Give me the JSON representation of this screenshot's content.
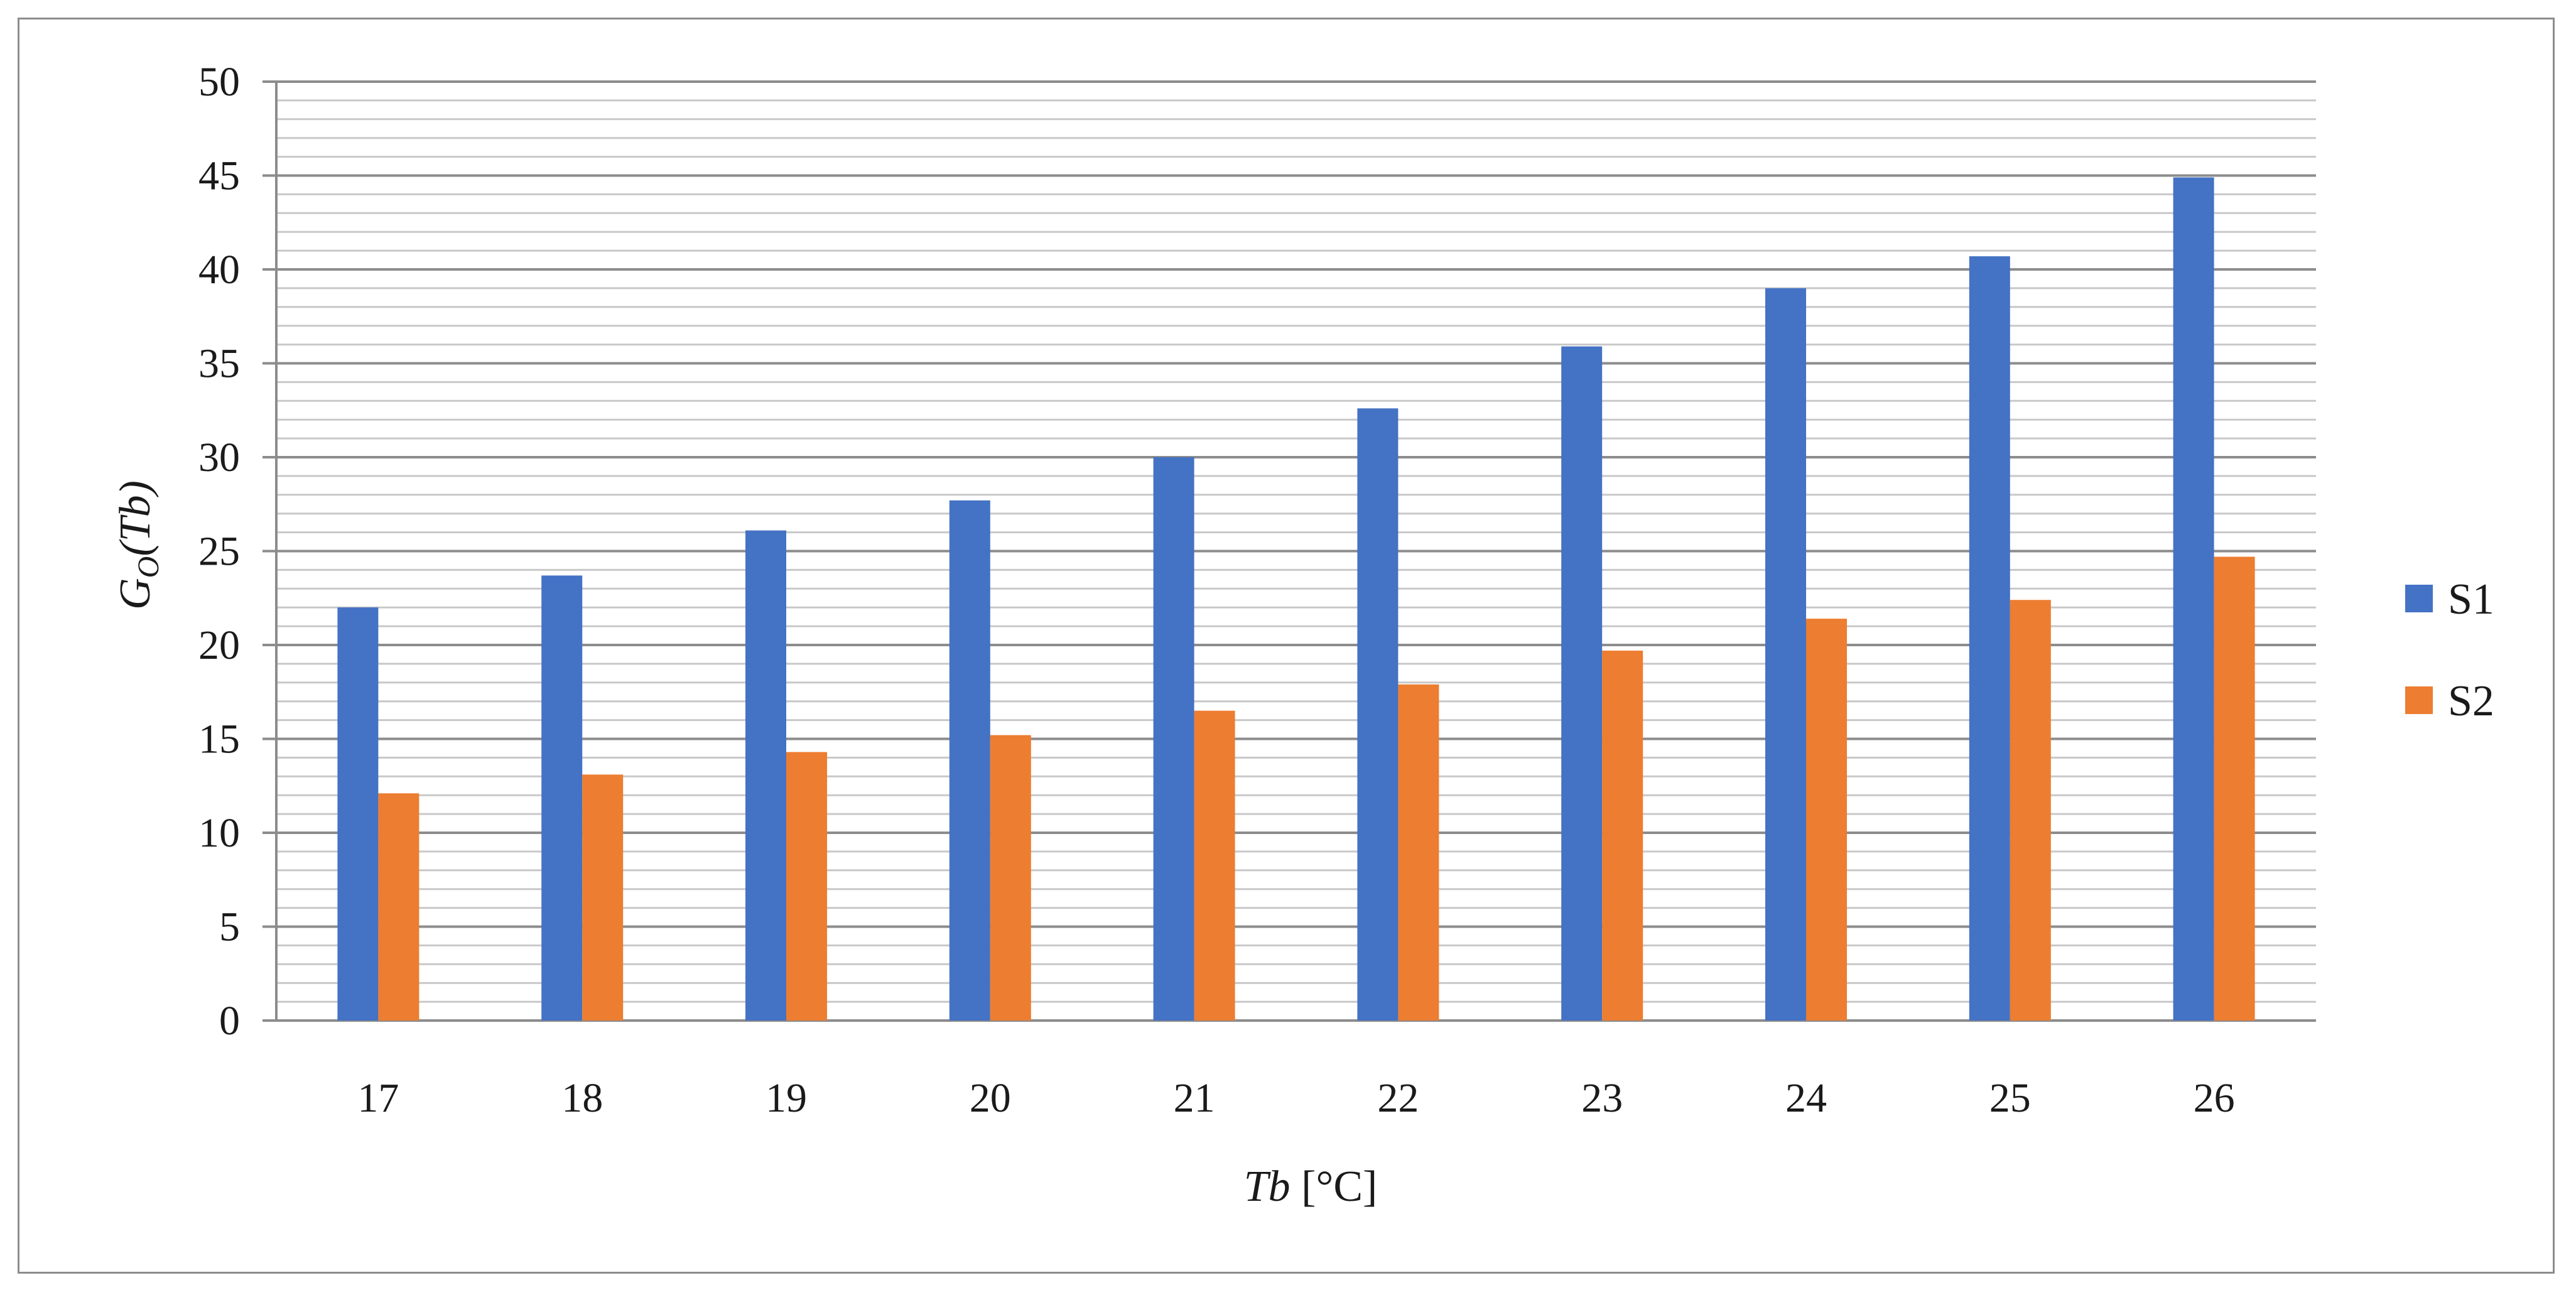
{
  "chart_data": {
    "type": "bar",
    "categories": [
      "17",
      "18",
      "19",
      "20",
      "21",
      "22",
      "23",
      "24",
      "25",
      "26"
    ],
    "series": [
      {
        "name": "S1",
        "color": "#4472C4",
        "values": [
          22.0,
          23.7,
          26.1,
          27.7,
          30.0,
          32.6,
          35.9,
          39.0,
          40.7,
          44.9
        ]
      },
      {
        "name": "S2",
        "color": "#ED7D31",
        "values": [
          12.1,
          13.1,
          14.3,
          15.2,
          16.5,
          17.9,
          19.7,
          21.4,
          22.4,
          24.7
        ]
      }
    ],
    "xlabel": {
      "italic": "Tb",
      "rest": " [°C]"
    },
    "ylabel": {
      "main": "G",
      "sub": "O",
      "paren": "(Tb)"
    },
    "ylim": [
      0,
      50
    ],
    "yticks": [
      0,
      5,
      10,
      15,
      20,
      25,
      30,
      35,
      40,
      45,
      50
    ],
    "minor_grid_step": 1,
    "grid": true,
    "legend_position": "right",
    "colors": {
      "major_grid": "#8c8c8c",
      "minor_grid": "#c8c8c8",
      "frame": "#8c8c8c"
    }
  }
}
